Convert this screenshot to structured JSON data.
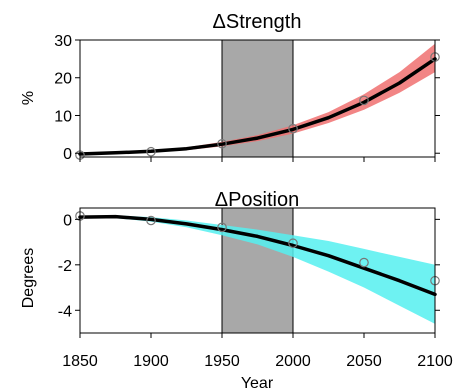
{
  "chart_data": [
    {
      "type": "line",
      "title": "ΔStrength",
      "ylabel": "%",
      "xlabel": "",
      "xlim": [
        1850,
        2100
      ],
      "ylim": [
        -1,
        30
      ],
      "yticks": [
        0,
        10,
        20,
        30
      ],
      "xticks": [
        1850,
        1900,
        1950,
        2000,
        2050,
        2100
      ],
      "shaded_period": [
        1950,
        2000
      ],
      "band_color": "#f07070",
      "line_color": "#000000",
      "series": [
        {
          "type": "line",
          "x": [
            1850,
            1875,
            1900,
            1925,
            1950,
            1975,
            2000,
            2025,
            2050,
            2075,
            2100
          ],
          "y": [
            -0.2,
            0.1,
            0.5,
            1.2,
            2.4,
            4.0,
            6.3,
            9.4,
            13.5,
            18.6,
            25.0
          ]
        },
        {
          "type": "band",
          "x": [
            1850,
            1875,
            1900,
            1925,
            1950,
            1975,
            2000,
            2025,
            2050,
            2075,
            2100
          ],
          "lower": [
            -0.4,
            -0.1,
            0.2,
            0.8,
            1.8,
            3.2,
            5.2,
            8.0,
            11.5,
            16.0,
            21.5
          ],
          "upper": [
            0.0,
            0.3,
            0.8,
            1.6,
            3.0,
            4.8,
            7.4,
            10.9,
            15.6,
            21.5,
            29.0
          ]
        },
        {
          "type": "scatter",
          "x": [
            1850,
            1900,
            1950,
            2000,
            2050,
            2100
          ],
          "y": [
            -0.5,
            0.4,
            2.5,
            6.5,
            14.0,
            25.5
          ]
        }
      ]
    },
    {
      "type": "line",
      "title": "ΔPosition",
      "ylabel": "Degrees",
      "xlabel": "Year",
      "xlim": [
        1850,
        2100
      ],
      "ylim": [
        -5,
        0.5
      ],
      "yticks": [
        0,
        -2,
        -4
      ],
      "xticks": [
        1850,
        1900,
        1950,
        2000,
        2050,
        2100
      ],
      "shaded_period": [
        1950,
        2000
      ],
      "band_color": "#55f0f0",
      "line_color": "#000000",
      "series": [
        {
          "type": "line",
          "x": [
            1850,
            1875,
            1900,
            1925,
            1950,
            1975,
            2000,
            2025,
            2050,
            2075,
            2100
          ],
          "y": [
            0.1,
            0.12,
            0.0,
            -0.2,
            -0.45,
            -0.75,
            -1.15,
            -1.6,
            -2.15,
            -2.7,
            -3.3
          ]
        },
        {
          "type": "band",
          "x": [
            1850,
            1875,
            1900,
            1925,
            1950,
            1975,
            2000,
            2025,
            2050,
            2075,
            2100
          ],
          "lower": [
            0.05,
            0.05,
            -0.1,
            -0.35,
            -0.7,
            -1.1,
            -1.65,
            -2.3,
            -3.0,
            -3.8,
            -4.6
          ],
          "upper": [
            0.15,
            0.18,
            0.1,
            -0.05,
            -0.25,
            -0.45,
            -0.7,
            -0.95,
            -1.3,
            -1.65,
            -2.0
          ]
        },
        {
          "type": "scatter",
          "x": [
            1850,
            1900,
            1950,
            2000,
            2050,
            2100
          ],
          "y": [
            0.15,
            -0.05,
            -0.35,
            -1.05,
            -1.9,
            -2.7
          ]
        }
      ]
    }
  ]
}
